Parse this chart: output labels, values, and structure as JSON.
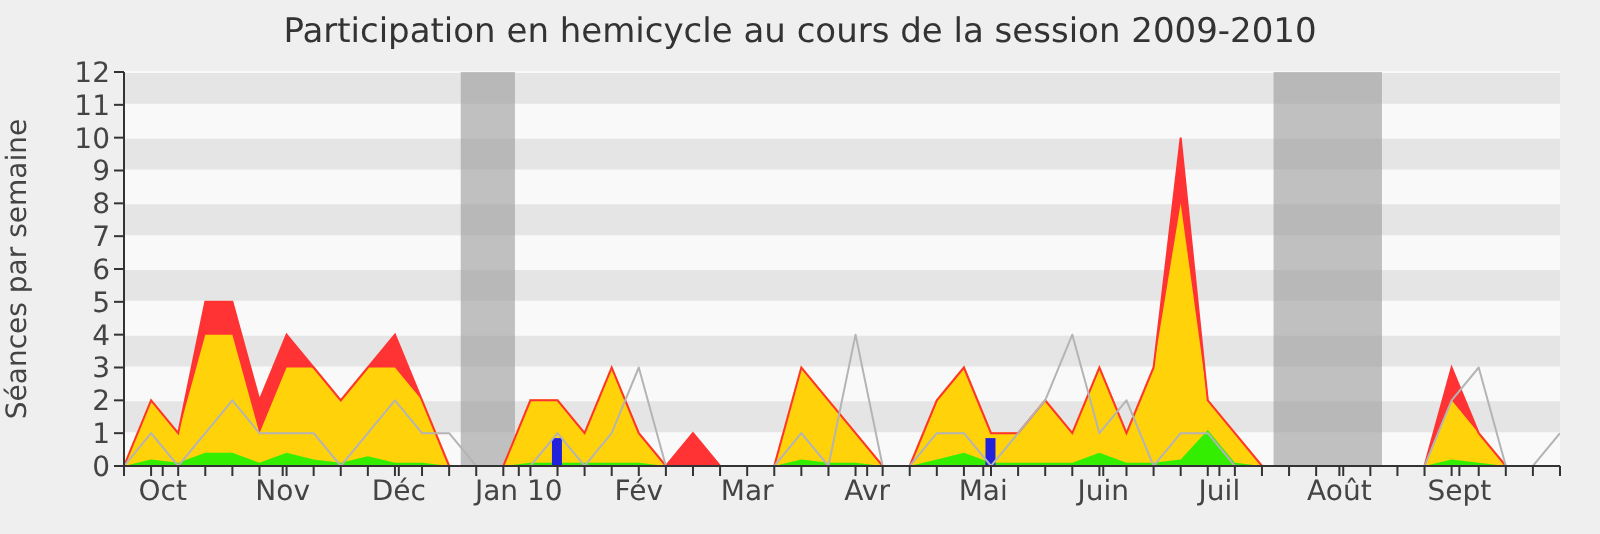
{
  "chart_data": {
    "type": "area",
    "title": "Participation en hemicycle au cours de la session 2009-2010",
    "ylabel": "Séances par semaine",
    "x": [
      "2009-09-21",
      "2009-09-28",
      "2009-10-05",
      "2009-10-12",
      "2009-10-19",
      "2009-10-26",
      "2009-11-02",
      "2009-11-09",
      "2009-11-16",
      "2009-11-23",
      "2009-11-30",
      "2009-12-07",
      "2009-12-14",
      "2009-12-21",
      "2009-12-28",
      "2010-01-04",
      "2010-01-11",
      "2010-01-18",
      "2010-01-25",
      "2010-02-01",
      "2010-02-08",
      "2010-02-15",
      "2010-02-22",
      "2010-03-01",
      "2010-03-08",
      "2010-03-15",
      "2010-03-22",
      "2010-03-29",
      "2010-04-05",
      "2010-04-12",
      "2010-04-19",
      "2010-04-26",
      "2010-05-03",
      "2010-05-10",
      "2010-05-17",
      "2010-05-24",
      "2010-05-31",
      "2010-06-07",
      "2010-06-14",
      "2010-06-21",
      "2010-06-28",
      "2010-07-05",
      "2010-07-12",
      "2010-07-19",
      "2010-07-26",
      "2010-08-02",
      "2010-08-09",
      "2010-08-16",
      "2010-08-23",
      "2010-08-30",
      "2010-09-06",
      "2010-09-13",
      "2010-09-20",
      "2010-09-27"
    ],
    "xlim": [
      "2009-09-21",
      "2010-09-27"
    ],
    "ylim": [
      0,
      12
    ],
    "yticks": [
      0,
      1,
      2,
      3,
      4,
      5,
      6,
      7,
      8,
      9,
      10,
      11,
      12
    ],
    "xticks": [
      {
        "value": "2009-09-21",
        "label": null
      },
      {
        "value": "2009-09-28",
        "label": null
      },
      {
        "value": "2009-10-01",
        "label": "Oct"
      },
      {
        "value": "2009-10-05",
        "label": null
      },
      {
        "value": "2009-10-12",
        "label": null
      },
      {
        "value": "2009-10-19",
        "label": null
      },
      {
        "value": "2009-10-26",
        "label": null
      },
      {
        "value": "2009-11-01",
        "label": "Nov"
      },
      {
        "value": "2009-11-02",
        "label": null
      },
      {
        "value": "2009-11-09",
        "label": null
      },
      {
        "value": "2009-11-16",
        "label": null
      },
      {
        "value": "2009-11-23",
        "label": null
      },
      {
        "value": "2009-11-30",
        "label": null
      },
      {
        "value": "2009-12-01",
        "label": "Déc"
      },
      {
        "value": "2009-12-07",
        "label": null
      },
      {
        "value": "2009-12-14",
        "label": null
      },
      {
        "value": "2009-12-21",
        "label": null
      },
      {
        "value": "2009-12-28",
        "label": null
      },
      {
        "value": "2010-01-01",
        "label": "Jan 10"
      },
      {
        "value": "2010-01-04",
        "label": null
      },
      {
        "value": "2010-01-11",
        "label": null
      },
      {
        "value": "2010-01-18",
        "label": null
      },
      {
        "value": "2010-01-25",
        "label": null
      },
      {
        "value": "2010-02-01",
        "label": "Fév"
      },
      {
        "value": "2010-02-08",
        "label": null
      },
      {
        "value": "2010-02-15",
        "label": null
      },
      {
        "value": "2010-02-22",
        "label": null
      },
      {
        "value": "2010-03-01",
        "label": "Mar"
      },
      {
        "value": "2010-03-08",
        "label": null
      },
      {
        "value": "2010-03-15",
        "label": null
      },
      {
        "value": "2010-03-22",
        "label": null
      },
      {
        "value": "2010-03-29",
        "label": null
      },
      {
        "value": "2010-04-01",
        "label": "Avr"
      },
      {
        "value": "2010-04-05",
        "label": null
      },
      {
        "value": "2010-04-12",
        "label": null
      },
      {
        "value": "2010-04-19",
        "label": null
      },
      {
        "value": "2010-04-26",
        "label": null
      },
      {
        "value": "2010-05-01",
        "label": "Mai"
      },
      {
        "value": "2010-05-03",
        "label": null
      },
      {
        "value": "2010-05-10",
        "label": null
      },
      {
        "value": "2010-05-17",
        "label": null
      },
      {
        "value": "2010-05-24",
        "label": null
      },
      {
        "value": "2010-05-31",
        "label": null
      },
      {
        "value": "2010-06-01",
        "label": "Juin"
      },
      {
        "value": "2010-06-07",
        "label": null
      },
      {
        "value": "2010-06-14",
        "label": null
      },
      {
        "value": "2010-06-21",
        "label": null
      },
      {
        "value": "2010-06-28",
        "label": null
      },
      {
        "value": "2010-07-01",
        "label": "Juil"
      },
      {
        "value": "2010-07-05",
        "label": null
      },
      {
        "value": "2010-07-12",
        "label": null
      },
      {
        "value": "2010-07-19",
        "label": null
      },
      {
        "value": "2010-07-26",
        "label": null
      },
      {
        "value": "2010-08-01",
        "label": "Août"
      },
      {
        "value": "2010-08-02",
        "label": null
      },
      {
        "value": "2010-08-09",
        "label": null
      },
      {
        "value": "2010-08-16",
        "label": null
      },
      {
        "value": "2010-08-23",
        "label": null
      },
      {
        "value": "2010-08-30",
        "label": null
      },
      {
        "value": "2010-09-01",
        "label": "Sept"
      },
      {
        "value": "2010-09-06",
        "label": null
      },
      {
        "value": "2010-09-13",
        "label": null
      },
      {
        "value": "2010-09-20",
        "label": null
      },
      {
        "value": "2010-09-27",
        "label": null
      }
    ],
    "stacked": true,
    "grid": "y",
    "marker": "none",
    "bands": [
      {
        "axis": "x",
        "from": "2009-12-17",
        "to": "2009-12-31",
        "color": "#999999"
      },
      {
        "axis": "x",
        "from": "2010-07-15",
        "to": "2010-08-12",
        "color": "#999999"
      }
    ],
    "series": [
      {
        "type": "line",
        "color": "#b4b4b4",
        "values": [
          0,
          1,
          0,
          1,
          2,
          1,
          1,
          1,
          0,
          1,
          2,
          1,
          1,
          0,
          0,
          0,
          1,
          0,
          1,
          3,
          0,
          0,
          0,
          0,
          0,
          1,
          0,
          4,
          0,
          0,
          1,
          1,
          0,
          1,
          2,
          4,
          1,
          2,
          0,
          1,
          1,
          0,
          0,
          0,
          0,
          0,
          0,
          0,
          0,
          2,
          3,
          0,
          0,
          1
        ]
      },
      {
        "color": "#33ee00",
        "values": [
          0,
          0.2,
          0.1,
          0.4,
          0.4,
          0.1,
          0.4,
          0.2,
          0.1,
          0.3,
          0.1,
          0.1,
          0,
          0,
          0,
          0.1,
          0.1,
          0.1,
          0.1,
          0.1,
          0,
          0,
          0,
          0,
          0,
          0.2,
          0.1,
          0.1,
          0,
          0,
          0.2,
          0.4,
          0.1,
          0.1,
          0.1,
          0.1,
          0.4,
          0.1,
          0.1,
          0.2,
          1.1,
          0.1,
          0,
          0,
          0,
          0,
          0,
          0,
          0,
          0.2,
          0.1,
          0,
          0,
          0
        ]
      },
      {
        "color": "#ffd20a",
        "values": [
          0,
          1.8,
          0.9,
          3.6,
          3.6,
          0.9,
          2.6,
          2.8,
          1.9,
          2.7,
          2.9,
          1.9,
          0,
          0,
          0,
          1.9,
          1.9,
          0.9,
          2.9,
          0.9,
          0,
          0,
          0,
          0,
          0,
          2.8,
          1.9,
          0.9,
          0,
          0,
          1.8,
          2.6,
          0.9,
          0.9,
          1.9,
          0.9,
          2.6,
          0.9,
          2.9,
          7.8,
          0.9,
          0.9,
          0,
          0,
          0,
          0,
          0,
          0,
          0,
          1.8,
          0.9,
          0,
          0,
          0
        ]
      },
      {
        "color": "#ff3333",
        "values": [
          0,
          0,
          0,
          1,
          1,
          1,
          1,
          0,
          0,
          0,
          1,
          0,
          0,
          0,
          0,
          0,
          0,
          0,
          0,
          0,
          0,
          1,
          0,
          0,
          0,
          0,
          0,
          0,
          0,
          0,
          0,
          0,
          0,
          0,
          0,
          0,
          0,
          0,
          0,
          2,
          0,
          0,
          0,
          0,
          0,
          0,
          0,
          0,
          0,
          1,
          0,
          0,
          0,
          0
        ]
      },
      {
        "type": "bar",
        "color": "#2222dd",
        "values": [
          null,
          null,
          null,
          null,
          null,
          null,
          null,
          null,
          null,
          null,
          null,
          null,
          null,
          null,
          null,
          null,
          0.85,
          null,
          null,
          null,
          null,
          null,
          null,
          null,
          null,
          null,
          null,
          null,
          null,
          null,
          null,
          null,
          0.85,
          null,
          null,
          null,
          null,
          null,
          null,
          null,
          null,
          null,
          null,
          null,
          null,
          null,
          null,
          null,
          null,
          null,
          null,
          null,
          null,
          null
        ]
      }
    ]
  }
}
